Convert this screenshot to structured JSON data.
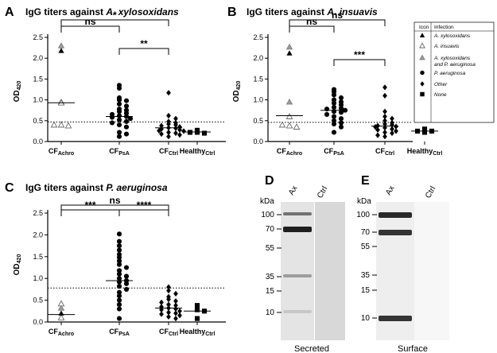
{
  "panels": {
    "A": {
      "letter": "A",
      "title_prefix": "IgG titers against ",
      "title_organism": "A. xylosoxidans",
      "ylabel": "OD",
      "ylabel_sub": "420"
    },
    "B": {
      "letter": "B",
      "title_prefix": "IgG titers against ",
      "title_organism": "A. insuavis",
      "ylabel": "OD",
      "ylabel_sub": "420"
    },
    "C": {
      "letter": "C",
      "title_prefix": "IgG titers against ",
      "title_organism": "P. aeruginosa",
      "ylabel": "OD",
      "ylabel_sub": "420"
    }
  },
  "categories": [
    {
      "main": "CF",
      "sub": "Achro"
    },
    {
      "main": "CF",
      "sub": "PsA"
    },
    {
      "main": "CF",
      "sub": "Ctrl"
    },
    {
      "main": "Healthy",
      "sub": "Ctrl"
    }
  ],
  "legend": {
    "header_icon": "Icon",
    "header_infection": "Infection",
    "rows": [
      {
        "icon": "filled-triangle",
        "line1": "A. xylosoxidans",
        "line2": ""
      },
      {
        "icon": "open-triangle",
        "line1": "A. insuavis",
        "line2": ""
      },
      {
        "icon": "grey-triangle",
        "line1": "A. xylosoxidans",
        "line2": "and P. aeruginosa"
      },
      {
        "icon": "filled-circle",
        "line1": "P. aeruginosa",
        "line2": ""
      },
      {
        "icon": "filled-diamond",
        "line1": "Other",
        "line2": ""
      },
      {
        "icon": "filled-square",
        "line1": "None",
        "line2": ""
      }
    ]
  },
  "chart_data": [
    {
      "panel": "A",
      "type": "scatter",
      "title": "IgG titers against A. xylosoxidans",
      "ylabel": "OD420",
      "ylim": [
        0,
        2.5
      ],
      "yticks": [
        "0.0",
        "0.5",
        "1.0",
        "1.5",
        "2.0",
        "2.5"
      ],
      "threshold": 0.47,
      "medians": [
        0.93,
        0.6,
        0.33,
        0.23
      ],
      "comparisons": [
        {
          "from": 0,
          "to": 1,
          "label": "ns"
        },
        {
          "from": 0,
          "to": 2,
          "label": "*"
        },
        {
          "from": 1,
          "to": 2,
          "label": "**"
        }
      ],
      "points": {
        "filled-triangle": [
          [
            0,
            2.18
          ]
        ],
        "grey-triangle": [
          [
            0,
            2.3
          ],
          [
            0,
            0.95
          ]
        ],
        "open-triangle": [
          [
            0,
            0.93
          ],
          [
            0,
            0.4
          ],
          [
            0,
            0.38
          ],
          [
            0,
            0.4
          ]
        ],
        "filled-circle": [
          [
            1,
            1.35
          ],
          [
            1,
            1.28
          ],
          [
            1,
            1.05
          ],
          [
            1,
            1.0
          ],
          [
            1,
            0.98
          ],
          [
            1,
            0.9
          ],
          [
            1,
            0.85
          ],
          [
            1,
            0.78
          ],
          [
            1,
            0.75
          ],
          [
            1,
            0.72
          ],
          [
            1,
            0.68
          ],
          [
            1,
            0.65
          ],
          [
            1,
            0.62
          ],
          [
            1,
            0.6
          ],
          [
            1,
            0.58
          ],
          [
            1,
            0.55
          ],
          [
            1,
            0.52
          ],
          [
            1,
            0.48
          ],
          [
            1,
            0.45
          ],
          [
            1,
            0.4
          ],
          [
            1,
            0.35
          ],
          [
            1,
            0.22
          ],
          [
            1,
            0.18
          ],
          [
            1,
            0.12
          ]
        ],
        "filled-diamond": [
          [
            2,
            1.17
          ],
          [
            2,
            0.62
          ],
          [
            2,
            0.55
          ],
          [
            2,
            0.48
          ],
          [
            2,
            0.45
          ],
          [
            2,
            0.42
          ],
          [
            2,
            0.4
          ],
          [
            2,
            0.38
          ],
          [
            2,
            0.35
          ],
          [
            2,
            0.33
          ],
          [
            2,
            0.32
          ],
          [
            2,
            0.3
          ],
          [
            2,
            0.28
          ],
          [
            2,
            0.26
          ],
          [
            2,
            0.25
          ],
          [
            2,
            0.22
          ],
          [
            2,
            0.2
          ],
          [
            2,
            0.18
          ],
          [
            2,
            0.16
          ],
          [
            2,
            0.12
          ]
        ],
        "filled-square": [
          [
            3,
            0.27
          ],
          [
            3,
            0.22
          ],
          [
            3,
            0.2
          ],
          [
            3,
            0.22
          ]
        ]
      }
    },
    {
      "panel": "B",
      "type": "scatter",
      "title": "IgG titers against A. insuavis",
      "ylabel": "OD420",
      "ylim": [
        0,
        2.5
      ],
      "yticks": [
        "0.0",
        "0.5",
        "1.0",
        "1.5",
        "2.0",
        "2.5"
      ],
      "threshold": 0.46,
      "medians": [
        0.62,
        0.75,
        0.37,
        0.25
      ],
      "comparisons": [
        {
          "from": 0,
          "to": 1,
          "label": "ns"
        },
        {
          "from": 0,
          "to": 2,
          "label": "ns"
        },
        {
          "from": 1,
          "to": 2,
          "label": "***"
        }
      ],
      "points": {
        "filled-triangle": [
          [
            0,
            2.12
          ]
        ],
        "grey-triangle": [
          [
            0,
            2.27
          ],
          [
            0,
            0.95
          ]
        ],
        "open-triangle": [
          [
            0,
            0.6
          ],
          [
            0,
            0.38
          ],
          [
            0,
            0.35
          ],
          [
            0,
            0.4
          ]
        ],
        "filled-circle": [
          [
            1,
            1.25
          ],
          [
            1,
            1.2
          ],
          [
            1,
            1.12
          ],
          [
            1,
            1.05
          ],
          [
            1,
            1.0
          ],
          [
            1,
            0.95
          ],
          [
            1,
            0.92
          ],
          [
            1,
            0.88
          ],
          [
            1,
            0.82
          ],
          [
            1,
            0.8
          ],
          [
            1,
            0.78
          ],
          [
            1,
            0.75
          ],
          [
            1,
            0.72
          ],
          [
            1,
            0.7
          ],
          [
            1,
            0.65
          ],
          [
            1,
            0.6
          ],
          [
            1,
            0.55
          ],
          [
            1,
            0.5
          ],
          [
            1,
            0.45
          ],
          [
            1,
            0.42
          ],
          [
            1,
            0.35
          ],
          [
            1,
            0.22
          ]
        ],
        "filled-diamond": [
          [
            2,
            1.3
          ],
          [
            2,
            1.1
          ],
          [
            2,
            0.72
          ],
          [
            2,
            0.6
          ],
          [
            2,
            0.55
          ],
          [
            2,
            0.5
          ],
          [
            2,
            0.45
          ],
          [
            2,
            0.42
          ],
          [
            2,
            0.4
          ],
          [
            2,
            0.38
          ],
          [
            2,
            0.36
          ],
          [
            2,
            0.35
          ],
          [
            2,
            0.33
          ],
          [
            2,
            0.3
          ],
          [
            2,
            0.28
          ],
          [
            2,
            0.25
          ],
          [
            2,
            0.22
          ],
          [
            2,
            0.2
          ],
          [
            2,
            0.15
          ],
          [
            2,
            0.12
          ]
        ],
        "filled-square": [
          [
            3,
            0.3
          ],
          [
            3,
            0.25
          ],
          [
            3,
            0.22
          ],
          [
            3,
            0.25
          ]
        ]
      }
    },
    {
      "panel": "C",
      "type": "scatter",
      "title": "IgG titers against P. aeruginosa",
      "ylabel": "OD420",
      "ylim": [
        0,
        2.5
      ],
      "yticks": [
        "0.0",
        "0.5",
        "1.0",
        "1.5",
        "2.0",
        "2.5"
      ],
      "threshold": 0.78,
      "medians": [
        0.17,
        0.95,
        0.32,
        0.25
      ],
      "comparisons": [
        {
          "from": 0,
          "to": 1,
          "label": "***"
        },
        {
          "from": 0,
          "to": 2,
          "label": "ns"
        },
        {
          "from": 1,
          "to": 2,
          "label": "****"
        }
      ],
      "points": {
        "open-triangle": [
          [
            0,
            0.42
          ],
          [
            0,
            0.1
          ]
        ],
        "filled-triangle": [
          [
            0,
            0.2
          ]
        ],
        "grey-triangle": [
          [
            0,
            0.32
          ]
        ],
        "filled-circle": [
          [
            1,
            2.02
          ],
          [
            1,
            1.85
          ],
          [
            1,
            1.75
          ],
          [
            1,
            1.65
          ],
          [
            1,
            1.55
          ],
          [
            1,
            1.48
          ],
          [
            1,
            1.4
          ],
          [
            1,
            1.32
          ],
          [
            1,
            1.25
          ],
          [
            1,
            1.18
          ],
          [
            1,
            1.1
          ],
          [
            1,
            1.05
          ],
          [
            1,
            1.0
          ],
          [
            1,
            0.95
          ],
          [
            1,
            0.92
          ],
          [
            1,
            0.88
          ],
          [
            1,
            0.82
          ],
          [
            1,
            0.75
          ],
          [
            1,
            0.68
          ],
          [
            1,
            0.6
          ],
          [
            1,
            0.5
          ],
          [
            1,
            0.4
          ],
          [
            1,
            0.3
          ],
          [
            1,
            0.08
          ]
        ],
        "filled-diamond": [
          [
            2,
            0.8
          ],
          [
            2,
            0.72
          ],
          [
            2,
            0.65
          ],
          [
            2,
            0.58
          ],
          [
            2,
            0.52
          ],
          [
            2,
            0.48
          ],
          [
            2,
            0.45
          ],
          [
            2,
            0.4
          ],
          [
            2,
            0.38
          ],
          [
            2,
            0.35
          ],
          [
            2,
            0.32
          ],
          [
            2,
            0.3
          ],
          [
            2,
            0.28
          ],
          [
            2,
            0.25
          ],
          [
            2,
            0.22
          ],
          [
            2,
            0.2
          ],
          [
            2,
            0.18
          ],
          [
            2,
            0.15
          ],
          [
            2,
            0.12
          ],
          [
            2,
            0.08
          ]
        ],
        "filled-square": [
          [
            3,
            0.38
          ],
          [
            3,
            0.28
          ],
          [
            3,
            0.25
          ],
          [
            3,
            0.08
          ]
        ]
      }
    }
  ],
  "blots": {
    "D": {
      "letter": "D",
      "kda": "kDa",
      "lanes": [
        "Ax",
        "Ctrl"
      ],
      "markers": [
        "100",
        "70",
        "55",
        "35",
        "15",
        "10"
      ],
      "caption": "Secreted",
      "bands": [
        {
          "kda_label": "100",
          "intensity": 0.55
        },
        {
          "kda_label": "70",
          "intensity": 0.95
        },
        {
          "kda_label": "35",
          "intensity": 0.35
        },
        {
          "kda_label": "10",
          "intensity": 0.15
        }
      ]
    },
    "E": {
      "letter": "E",
      "kda": "kDa",
      "lanes": [
        "Ax",
        "Ctrl"
      ],
      "markers": [
        "100",
        "70",
        "55",
        "35",
        "15",
        "10"
      ],
      "caption": "Surface",
      "bands": [
        {
          "kda_label": "100",
          "intensity": 0.9
        },
        {
          "kda_label": "70",
          "intensity": 0.85
        },
        {
          "kda_label": "10",
          "intensity": 0.85
        }
      ]
    }
  }
}
